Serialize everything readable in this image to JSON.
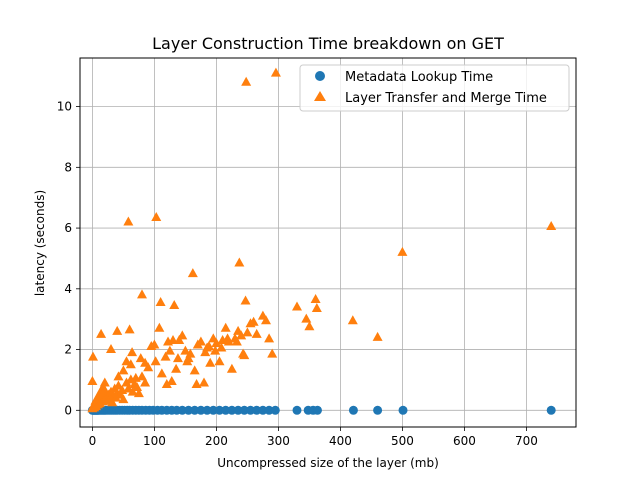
{
  "chart_data": {
    "type": "scatter",
    "title": "Layer Construction Time breakdown on GET",
    "xlabel": "Uncompressed size of the layer (mb)",
    "ylabel": "latency (seconds)",
    "xlim": [
      -20,
      780
    ],
    "ylim": [
      -0.55,
      11.6
    ],
    "xticks": [
      0,
      100,
      200,
      300,
      400,
      500,
      600,
      700
    ],
    "yticks": [
      0,
      2,
      4,
      6,
      8,
      10
    ],
    "grid": true,
    "legend_position": "upper right",
    "colors": {
      "metadata": "#1f77b4",
      "transfer": "#ff7f0e"
    },
    "series": [
      {
        "name": "Metadata Lookup Time",
        "marker": "circle",
        "color": "#1f77b4",
        "points": [
          [
            0,
            0
          ],
          [
            1,
            0
          ],
          [
            2,
            0
          ],
          [
            3,
            0
          ],
          [
            4,
            0
          ],
          [
            5,
            0
          ],
          [
            6,
            0
          ],
          [
            7,
            0
          ],
          [
            8,
            0
          ],
          [
            9,
            0
          ],
          [
            10,
            0
          ],
          [
            12,
            0
          ],
          [
            14,
            0
          ],
          [
            16,
            0
          ],
          [
            18,
            0
          ],
          [
            20,
            0
          ],
          [
            22,
            0
          ],
          [
            25,
            0
          ],
          [
            28,
            0
          ],
          [
            31,
            0
          ],
          [
            34,
            0
          ],
          [
            37,
            0
          ],
          [
            40,
            0
          ],
          [
            44,
            0
          ],
          [
            48,
            0
          ],
          [
            52,
            0
          ],
          [
            56,
            0
          ],
          [
            60,
            0
          ],
          [
            65,
            0
          ],
          [
            70,
            0
          ],
          [
            75,
            0
          ],
          [
            80,
            0
          ],
          [
            86,
            0
          ],
          [
            92,
            0
          ],
          [
            98,
            0
          ],
          [
            105,
            0
          ],
          [
            112,
            0
          ],
          [
            120,
            0
          ],
          [
            128,
            0
          ],
          [
            136,
            0
          ],
          [
            145,
            0
          ],
          [
            155,
            0
          ],
          [
            165,
            0
          ],
          [
            175,
            0
          ],
          [
            185,
            0
          ],
          [
            195,
            0
          ],
          [
            205,
            0
          ],
          [
            215,
            0
          ],
          [
            225,
            0
          ],
          [
            235,
            0
          ],
          [
            245,
            0
          ],
          [
            255,
            0
          ],
          [
            265,
            0
          ],
          [
            275,
            0
          ],
          [
            285,
            0
          ],
          [
            295,
            0
          ],
          [
            330,
            0
          ],
          [
            348,
            0
          ],
          [
            356,
            0
          ],
          [
            363,
            0
          ],
          [
            421,
            0
          ],
          [
            460,
            0
          ],
          [
            501,
            0
          ],
          [
            740,
            0
          ]
        ]
      },
      {
        "name": "Layer Transfer and Merge Time",
        "marker": "triangle",
        "color": "#ff7f0e",
        "points": [
          [
            0,
            0.05
          ],
          [
            1,
            0.1
          ],
          [
            2,
            0.15
          ],
          [
            3,
            0.08
          ],
          [
            4,
            0.2
          ],
          [
            5,
            0.3
          ],
          [
            6,
            0.12
          ],
          [
            7,
            0.25
          ],
          [
            8,
            0.4
          ],
          [
            9,
            0.18
          ],
          [
            10,
            0.35
          ],
          [
            11,
            0.5
          ],
          [
            12,
            0.22
          ],
          [
            13,
            0.6
          ],
          [
            14,
            0.3
          ],
          [
            15,
            0.45
          ],
          [
            16,
            0.7
          ],
          [
            17,
            0.28
          ],
          [
            18,
            0.55
          ],
          [
            19,
            0.38
          ],
          [
            20,
            0.65
          ],
          [
            22,
            0.42
          ],
          [
            24,
            0.3
          ],
          [
            26,
            0.5
          ],
          [
            28,
            0.35
          ],
          [
            30,
            0.6
          ],
          [
            32,
            0.25
          ],
          [
            34,
            0.45
          ],
          [
            36,
            0.7
          ],
          [
            38,
            0.4
          ],
          [
            40,
            0.55
          ],
          [
            42,
            0.8
          ],
          [
            45,
            0.5
          ],
          [
            48,
            0.65
          ],
          [
            50,
            0.35
          ],
          [
            55,
            0.9
          ],
          [
            58,
            0.7
          ],
          [
            62,
            1.0
          ],
          [
            65,
            0.6
          ],
          [
            68,
            0.85
          ],
          [
            72,
            0.75
          ],
          [
            75,
            0.55
          ],
          [
            80,
            1.1
          ],
          [
            85,
            0.9
          ],
          [
            0,
            0.95
          ],
          [
            1,
            1.75
          ],
          [
            14,
            2.5
          ],
          [
            20,
            0.9
          ],
          [
            30,
            2.0
          ],
          [
            40,
            2.6
          ],
          [
            42,
            1.1
          ],
          [
            50,
            1.3
          ],
          [
            55,
            1.6
          ],
          [
            60,
            2.65
          ],
          [
            62,
            1.5
          ],
          [
            64,
            1.9
          ],
          [
            70,
            1.05
          ],
          [
            78,
            1.7
          ],
          [
            80,
            3.8
          ],
          [
            85,
            1.55
          ],
          [
            90,
            1.4
          ],
          [
            95,
            2.1
          ],
          [
            100,
            2.15
          ],
          [
            102,
            1.6
          ],
          [
            108,
            2.7
          ],
          [
            110,
            3.55
          ],
          [
            112,
            1.2
          ],
          [
            118,
            1.75
          ],
          [
            120,
            0.85
          ],
          [
            122,
            2.25
          ],
          [
            125,
            1.95
          ],
          [
            128,
            0.95
          ],
          [
            130,
            2.3
          ],
          [
            132,
            3.45
          ],
          [
            135,
            1.35
          ],
          [
            138,
            1.7
          ],
          [
            140,
            2.3
          ],
          [
            145,
            2.45
          ],
          [
            150,
            1.95
          ],
          [
            153,
            1.6
          ],
          [
            155,
            1.7
          ],
          [
            158,
            1.85
          ],
          [
            162,
            4.5
          ],
          [
            165,
            1.3
          ],
          [
            168,
            0.85
          ],
          [
            170,
            2.15
          ],
          [
            175,
            2.25
          ],
          [
            180,
            0.9
          ],
          [
            182,
            1.9
          ],
          [
            185,
            2.05
          ],
          [
            188,
            2.1
          ],
          [
            190,
            1.55
          ],
          [
            195,
            2.35
          ],
          [
            198,
            1.95
          ],
          [
            200,
            2.2
          ],
          [
            205,
            1.6
          ],
          [
            208,
            2.05
          ],
          [
            210,
            2.3
          ],
          [
            215,
            2.7
          ],
          [
            218,
            2.35
          ],
          [
            220,
            2.25
          ],
          [
            225,
            1.35
          ],
          [
            230,
            2.35
          ],
          [
            233,
            2.25
          ],
          [
            235,
            2.6
          ],
          [
            237,
            4.85
          ],
          [
            240,
            2.45
          ],
          [
            243,
            1.85
          ],
          [
            245,
            1.8
          ],
          [
            247,
            3.6
          ],
          [
            250,
            2.55
          ],
          [
            255,
            2.85
          ],
          [
            260,
            2.9
          ],
          [
            265,
            2.5
          ],
          [
            275,
            3.1
          ],
          [
            280,
            2.95
          ],
          [
            285,
            2.35
          ],
          [
            290,
            1.85
          ],
          [
            296,
            11.1
          ],
          [
            248,
            10.8
          ],
          [
            58,
            6.2
          ],
          [
            103,
            6.35
          ],
          [
            330,
            3.4
          ],
          [
            345,
            3.0
          ],
          [
            350,
            2.75
          ],
          [
            360,
            3.65
          ],
          [
            362,
            3.35
          ],
          [
            420,
            2.95
          ],
          [
            460,
            2.4
          ],
          [
            500,
            5.2
          ],
          [
            740,
            6.05
          ]
        ]
      }
    ]
  }
}
